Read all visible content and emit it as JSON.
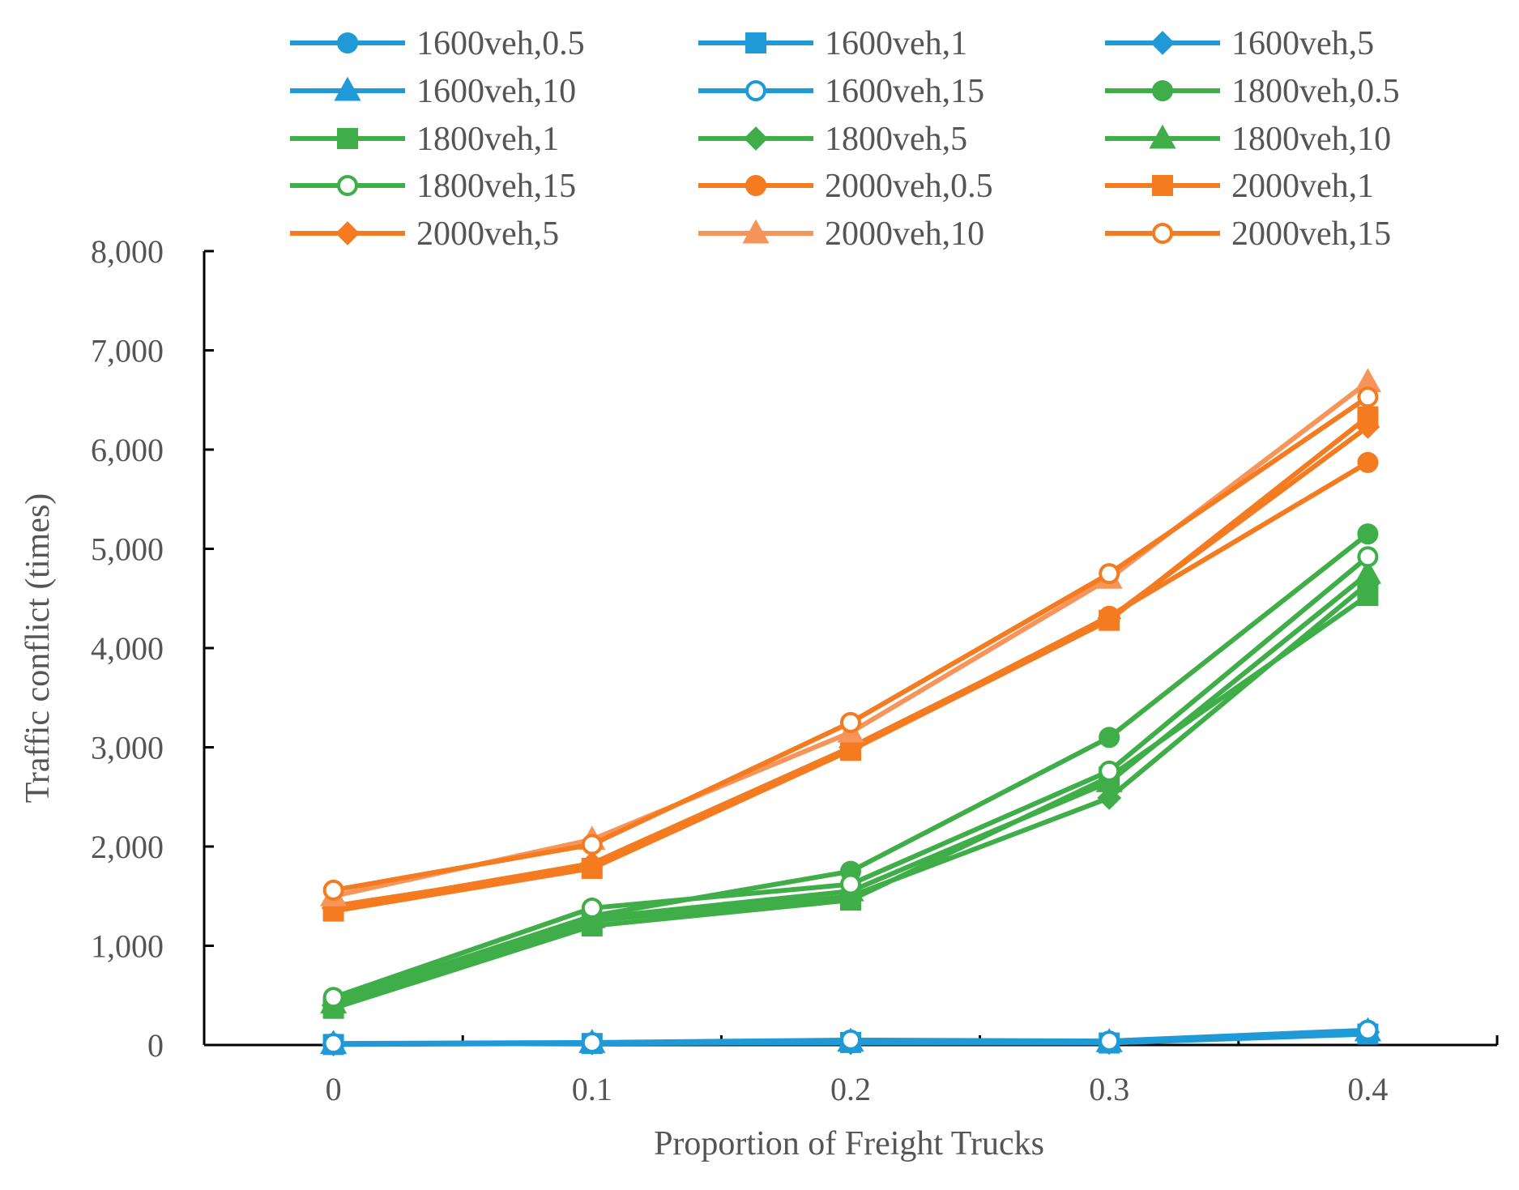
{
  "chart_data": {
    "type": "line",
    "title": "",
    "xlabel": "Proportion of Freight  Trucks",
    "ylabel": "Traffic conflict (times)",
    "x": [
      0,
      0.1,
      0.2,
      0.3,
      0.4
    ],
    "x_tick_labels": [
      "0",
      "0.1",
      "0.2",
      "0.3",
      "0.4"
    ],
    "xlim": [
      -0.05,
      0.45
    ],
    "ylim": [
      0,
      8000
    ],
    "y_ticks": [
      0,
      1000,
      2000,
      3000,
      4000,
      5000,
      6000,
      7000,
      8000
    ],
    "y_tick_labels": [
      "0",
      "1,000",
      "2,000",
      "3,000",
      "4,000",
      "5,000",
      "6,000",
      "7,000",
      "8,000"
    ],
    "grid": false,
    "legend_position": "top",
    "series": [
      {
        "name": "1600veh,0.5",
        "color": "#1f9ad6",
        "marker": "circle",
        "filled": true,
        "values": [
          10,
          20,
          30,
          25,
          120
        ]
      },
      {
        "name": "1600veh,1",
        "color": "#1f9ad6",
        "marker": "square",
        "filled": true,
        "values": [
          5,
          15,
          25,
          20,
          110
        ]
      },
      {
        "name": "1600veh,5",
        "color": "#1f9ad6",
        "marker": "diamond",
        "filled": true,
        "values": [
          8,
          18,
          20,
          22,
          130
        ]
      },
      {
        "name": "1600veh,10",
        "color": "#1f9ad6",
        "marker": "triangle",
        "filled": true,
        "values": [
          12,
          22,
          35,
          30,
          140
        ]
      },
      {
        "name": "1600veh,15",
        "color": "#1f9ad6",
        "marker": "circle",
        "filled": false,
        "values": [
          15,
          25,
          50,
          40,
          150
        ]
      },
      {
        "name": "1800veh,0.5",
        "color": "#3fae49",
        "marker": "circle",
        "filled": true,
        "values": [
          450,
          1300,
          1750,
          3100,
          5150
        ]
      },
      {
        "name": "1800veh,1",
        "color": "#3fae49",
        "marker": "square",
        "filled": true,
        "values": [
          370,
          1200,
          1460,
          2700,
          4530
        ]
      },
      {
        "name": "1800veh,5",
        "color": "#3fae49",
        "marker": "diamond",
        "filled": true,
        "values": [
          400,
          1250,
          1500,
          2490,
          4650
        ]
      },
      {
        "name": "1800veh,10",
        "color": "#3fae49",
        "marker": "triangle",
        "filled": true,
        "values": [
          420,
          1280,
          1550,
          2650,
          4750
        ]
      },
      {
        "name": "1800veh,15",
        "color": "#3fae49",
        "marker": "circle",
        "filled": false,
        "values": [
          480,
          1380,
          1620,
          2760,
          4920
        ]
      },
      {
        "name": "2000veh,0.5",
        "color": "#f47b20",
        "marker": "circle",
        "filled": true,
        "values": [
          1400,
          1800,
          2980,
          4320,
          5870
        ]
      },
      {
        "name": "2000veh,1",
        "color": "#f47b20",
        "marker": "square",
        "filled": true,
        "values": [
          1350,
          1780,
          2970,
          4280,
          6330
        ]
      },
      {
        "name": "2000veh,5",
        "color": "#f47b20",
        "marker": "diamond",
        "filled": true,
        "values": [
          1380,
          1830,
          3000,
          4300,
          6230
        ]
      },
      {
        "name": "2000veh,10",
        "color": "#f7945a",
        "marker": "triangle",
        "filled": true,
        "values": [
          1500,
          2070,
          3150,
          4700,
          6680
        ]
      },
      {
        "name": "2000veh,15",
        "color": "#f47b20",
        "marker": "circle",
        "filled": false,
        "values": [
          1560,
          2020,
          3250,
          4750,
          6530
        ]
      }
    ]
  }
}
